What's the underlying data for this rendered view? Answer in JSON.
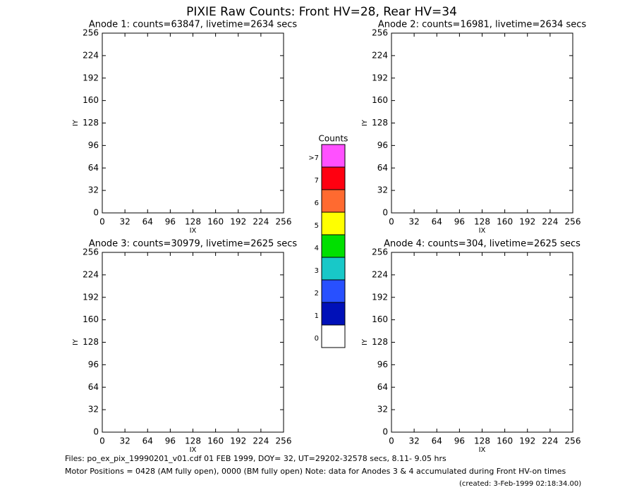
{
  "page_title": "PIXIE Raw Counts:  Front HV=28, Rear HV=34",
  "chart_data": [
    {
      "type": "heatmap",
      "title": "Anode 1: counts=63847, livetime=2634 secs",
      "xlabel": "IX",
      "ylabel": "IY",
      "xlim": [
        0,
        256
      ],
      "ylim": [
        0,
        256
      ],
      "xticks": [
        0,
        32,
        64,
        96,
        128,
        160,
        192,
        224,
        256
      ],
      "yticks": [
        0,
        32,
        64,
        96,
        128,
        160,
        192,
        224,
        256
      ]
    },
    {
      "type": "heatmap",
      "title": "Anode 2: counts=16981, livetime=2634 secs",
      "xlabel": "IX",
      "ylabel": "IY",
      "xlim": [
        0,
        256
      ],
      "ylim": [
        0,
        256
      ],
      "xticks": [
        0,
        32,
        64,
        96,
        128,
        160,
        192,
        224,
        256
      ],
      "yticks": [
        0,
        32,
        64,
        96,
        128,
        160,
        192,
        224,
        256
      ]
    },
    {
      "type": "heatmap",
      "title": "Anode 3: counts=30979, livetime=2625 secs",
      "xlabel": "IX",
      "ylabel": "IY",
      "xlim": [
        0,
        256
      ],
      "ylim": [
        0,
        256
      ],
      "xticks": [
        0,
        32,
        64,
        96,
        128,
        160,
        192,
        224,
        256
      ],
      "yticks": [
        0,
        32,
        64,
        96,
        128,
        160,
        192,
        224,
        256
      ]
    },
    {
      "type": "heatmap",
      "title": "Anode 4: counts=304, livetime=2625 secs",
      "xlabel": "IX",
      "ylabel": "IY",
      "xlim": [
        0,
        256
      ],
      "ylim": [
        0,
        256
      ],
      "xticks": [
        0,
        32,
        64,
        96,
        128,
        160,
        192,
        224,
        256
      ],
      "yticks": [
        0,
        32,
        64,
        96,
        128,
        160,
        192,
        224,
        256
      ]
    },
    {
      "type": "colorbar",
      "title": "Counts",
      "categories": [
        "0",
        "1",
        "2",
        "3",
        "4",
        "5",
        "6",
        "7",
        ">7"
      ],
      "colors": [
        "#ffffff",
        "#0010b8",
        "#2850ff",
        "#18c8c8",
        "#00e000",
        "#ffff00",
        "#ff6a30",
        "#ff0010",
        "#ff50ff"
      ]
    }
  ],
  "footer": {
    "files": "Files: po_ex_pix_19990201_v01.cdf    01 FEB 1999, DOY= 32, UT=29202-32578 secs,  8.11- 9.05 hrs",
    "motor": "Motor Positions = 0428 (AM fully open), 0000 (BM fully open)    Note: data for Anodes 3 & 4 accumulated during Front HV-on times",
    "created": "(created:  3-Feb-1999 02:18:34.00)"
  }
}
